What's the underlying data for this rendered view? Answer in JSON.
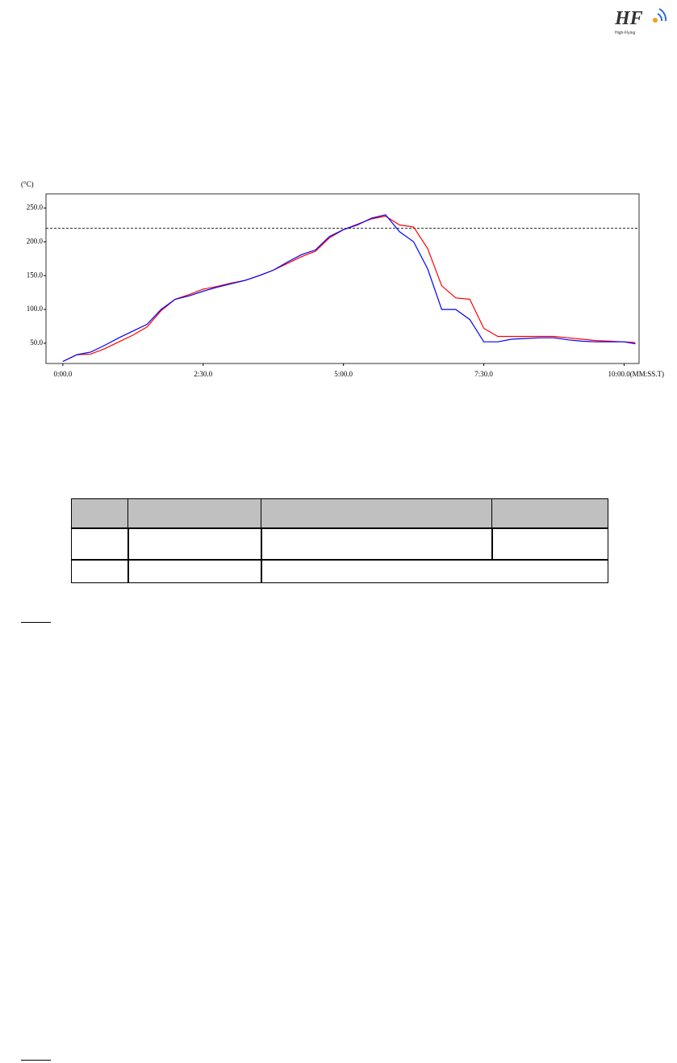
{
  "header": {
    "logo": "HF",
    "logo_subtitle": "High-Flying"
  },
  "chart_data": {
    "type": "line",
    "y_axis_label": "(°C)",
    "x": [
      0,
      15,
      30,
      45,
      60,
      75,
      90,
      105,
      120,
      135,
      150,
      165,
      180,
      195,
      210,
      225,
      240,
      255,
      270,
      285,
      300,
      315,
      330,
      345,
      360,
      375,
      390,
      405,
      420,
      435,
      450,
      465,
      480,
      495,
      510,
      525,
      540,
      555,
      570,
      585,
      600,
      612
    ],
    "series": [
      {
        "color": "#ff0000",
        "values": [
          23,
          33,
          34,
          42,
          52,
          62,
          74,
          98,
          115,
          122,
          130,
          134,
          139,
          143,
          150,
          158,
          168,
          178,
          186,
          206,
          218,
          226,
          234,
          238,
          225,
          222,
          190,
          135,
          117,
          115,
          72,
          60,
          60,
          60,
          60,
          60,
          58,
          56,
          54,
          53,
          52,
          51
        ]
      },
      {
        "color": "#0000ff",
        "values": [
          23,
          33,
          37,
          47,
          58,
          68,
          78,
          100,
          115,
          120,
          127,
          133,
          138,
          143,
          150,
          158,
          170,
          181,
          188,
          208,
          218,
          225,
          235,
          240,
          215,
          200,
          160,
          100,
          100,
          85,
          52,
          52,
          56,
          57,
          58,
          58,
          55,
          53,
          52,
          52,
          52,
          49
        ]
      }
    ],
    "reference_line": 220,
    "xlim": [
      -18,
      616
    ],
    "ylim": [
      20,
      271
    ],
    "xticks": [
      {
        "value": 0,
        "label": "0:00.0"
      },
      {
        "value": 150,
        "label": "2:30.0"
      },
      {
        "value": 300,
        "label": "5:00.0"
      },
      {
        "value": 450,
        "label": "7:30.0"
      },
      {
        "value": 600,
        "label": "10:00.0(MM:SS.T)"
      }
    ],
    "yticks": [
      {
        "value": 50,
        "label": "50.0"
      },
      {
        "value": 100,
        "label": "100.0"
      },
      {
        "value": 150,
        "label": "150.0"
      },
      {
        "value": 200,
        "label": "200.0"
      },
      {
        "value": 250,
        "label": "250.0"
      }
    ]
  }
}
